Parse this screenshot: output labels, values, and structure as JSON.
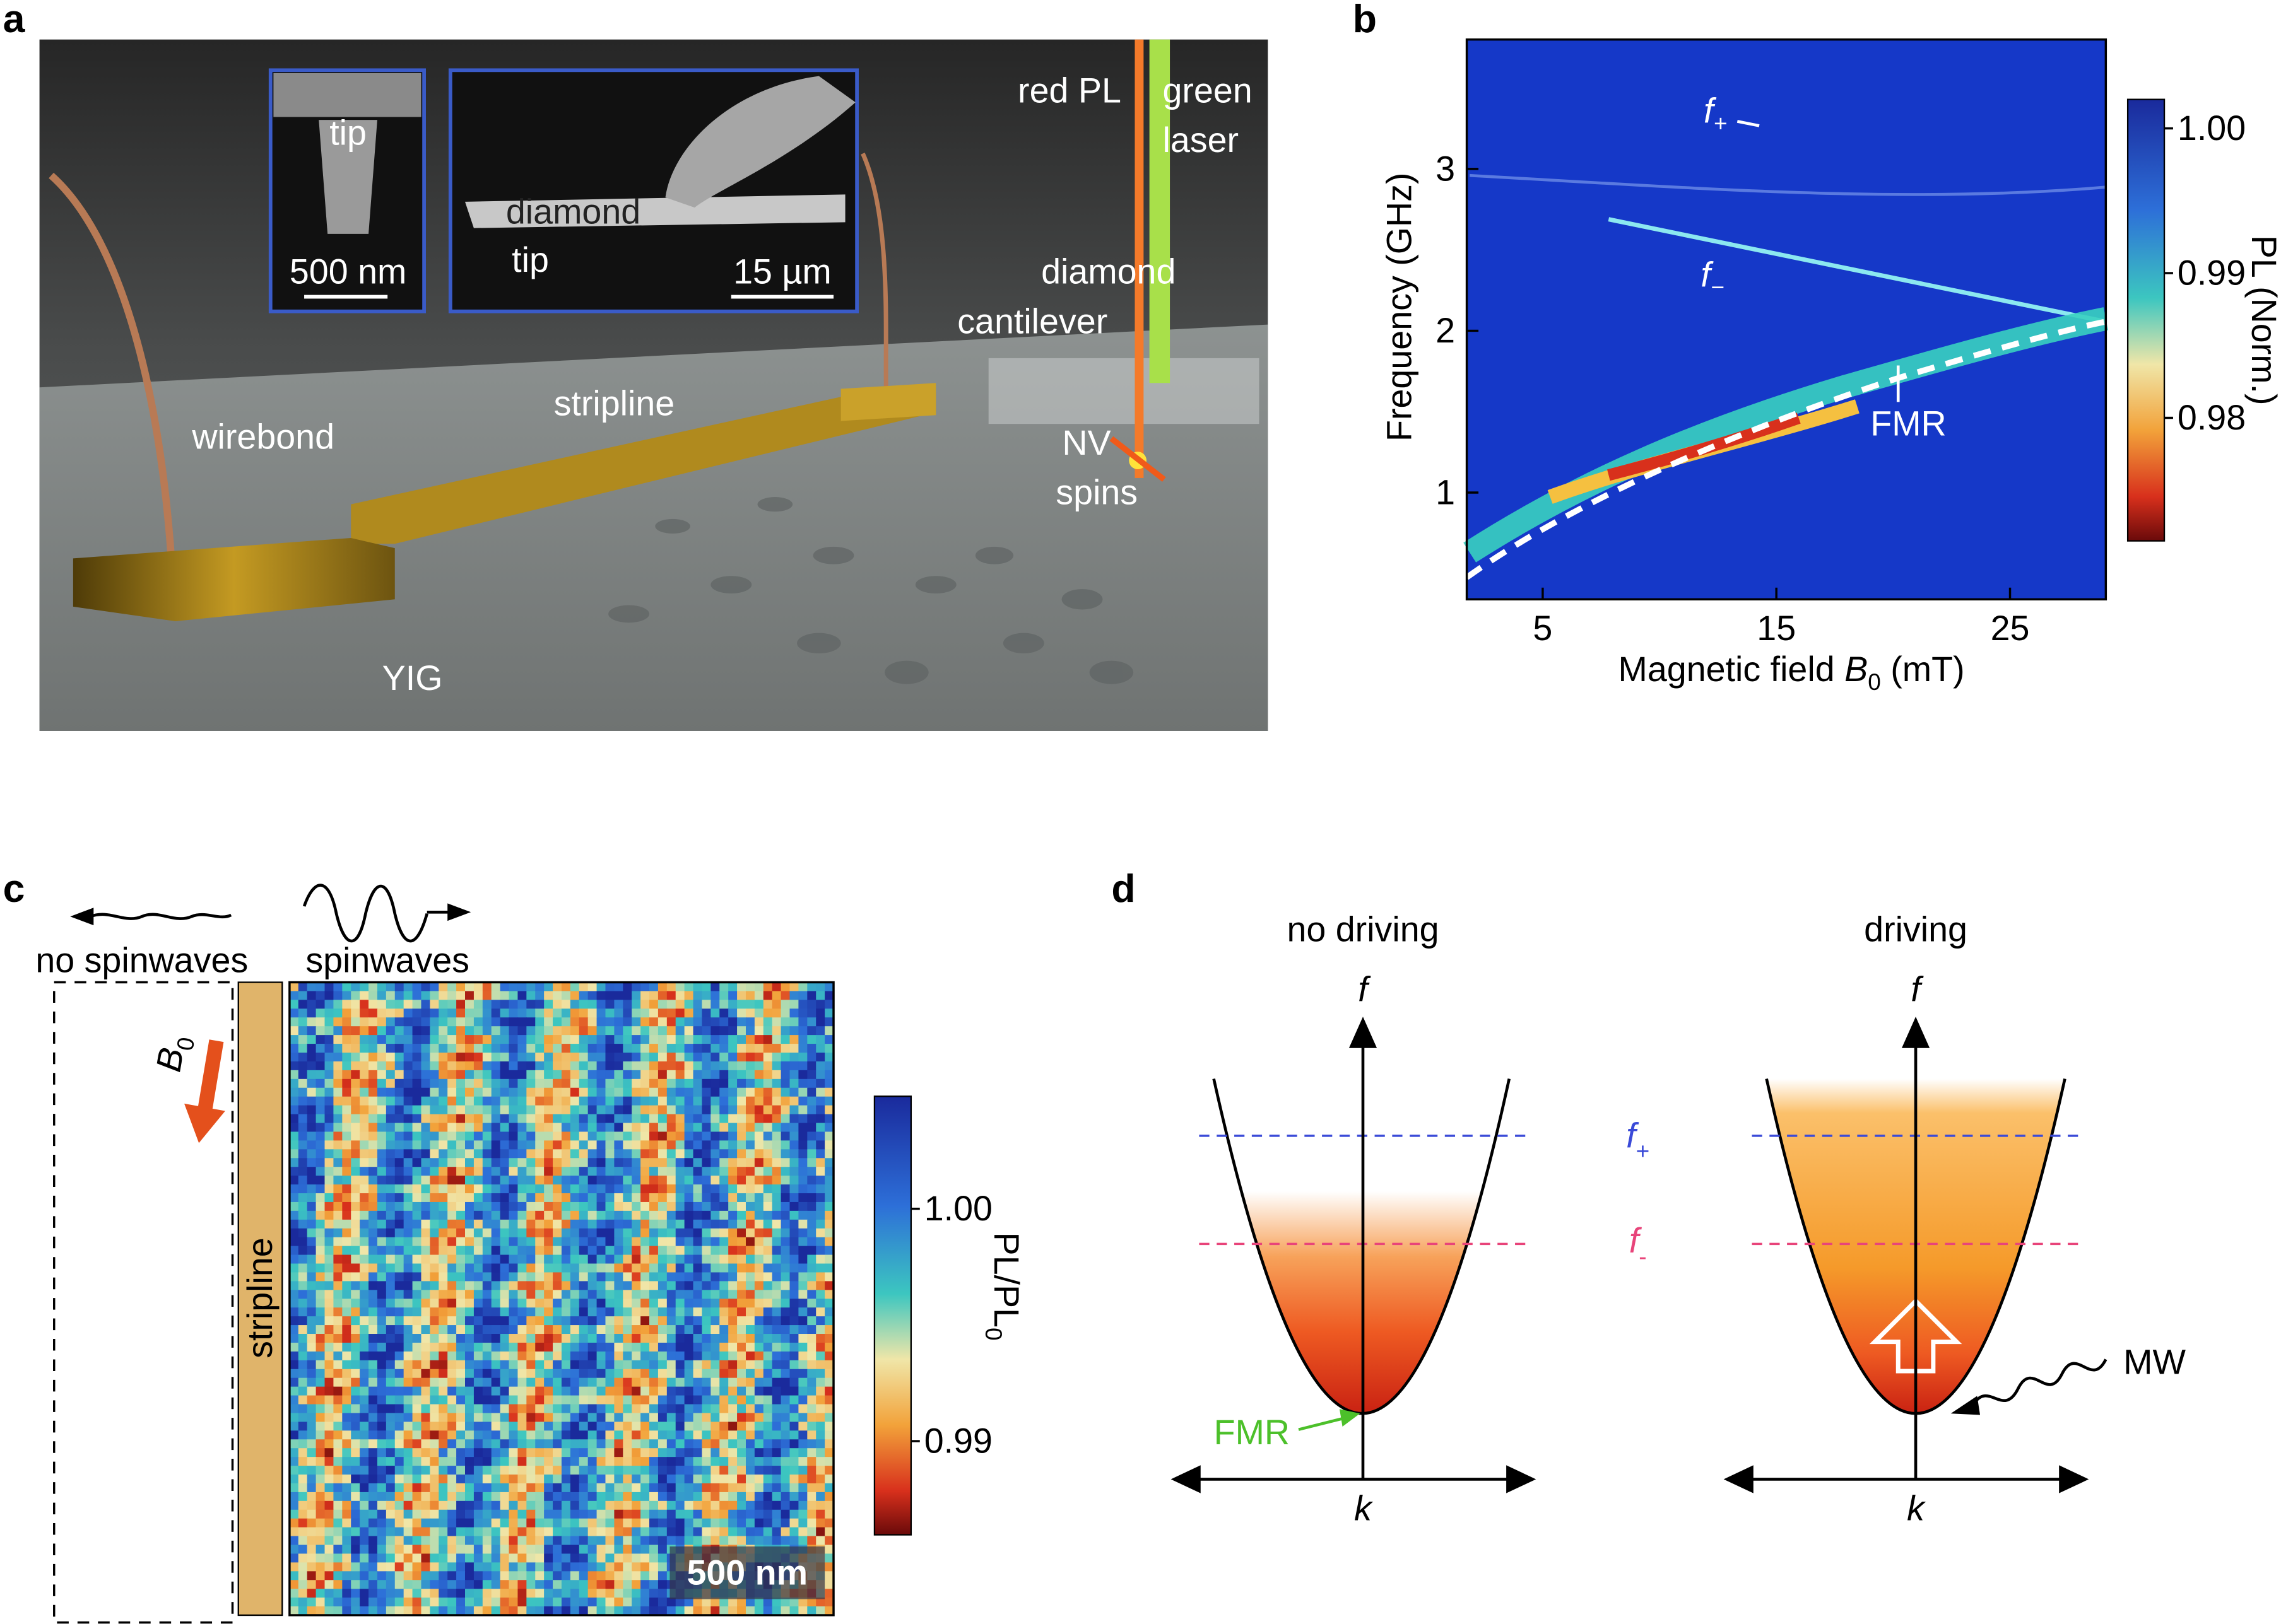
{
  "panels": {
    "a": {
      "label": "a",
      "inset_1": {
        "title": "tip",
        "scale": "500 nm"
      },
      "inset_2": {
        "diamond": "diamond",
        "tip": "tip",
        "scale": "15 µm"
      },
      "labels": {
        "red_pl": "red PL",
        "green": "green",
        "laser": "laser",
        "diamond": "diamond",
        "cantilever": "cantilever",
        "stripline": "stripline",
        "wirebond": "wirebond",
        "nv": "NV",
        "spins": "spins",
        "yig": "YIG"
      }
    },
    "b": {
      "label": "b",
      "ylabel": "Frequency (GHz)",
      "xlabel": {
        "text": "Magnetic field ",
        "symbol": "B",
        "subscript": "0",
        "unit": " (mT)"
      },
      "xlim": [
        1.75,
        29.1
      ],
      "xticks": [
        5,
        15,
        25
      ],
      "ylim": [
        0.34,
        3.8
      ],
      "yticks": [
        1,
        2,
        3
      ],
      "annotations": {
        "f_plus": {
          "symbol": "f",
          "subscript": "+"
        },
        "f_minus": {
          "symbol": "f",
          "subscript": "−"
        },
        "fmr": "FMR"
      },
      "colorbar": {
        "label": "PL (Norm.)",
        "lim": [
          0.9715,
          1.002
        ],
        "ticks": [
          {
            "value": 1,
            "label": "1.00"
          },
          {
            "value": 0.99,
            "label": "0.99"
          },
          {
            "value": 0.98,
            "label": "0.98"
          }
        ]
      }
    },
    "c": {
      "label": "c",
      "left": "no spinwaves",
      "right": "spinwaves",
      "field": {
        "symbol": "B",
        "subscript": "0"
      },
      "stripline": "stripline",
      "scale": "500 nm",
      "colorbar": {
        "label": {
          "text": "PL/PL",
          "subscript": "0"
        },
        "lim": [
          0.98597,
          1.00484
        ],
        "ticks": [
          {
            "value": 1,
            "label": "1.00"
          },
          {
            "value": 0.99,
            "label": "0.99"
          }
        ]
      }
    },
    "d": {
      "label": "d",
      "left_title": "no driving",
      "right_title": "driving",
      "f_axis": "f",
      "k_axis": "k",
      "f_plus": {
        "symbol": "f",
        "subscript": "+"
      },
      "f_minus": {
        "symbol": "f",
        "subscript": "-"
      },
      "fmr": "FMR",
      "mw": "MW"
    }
  }
}
